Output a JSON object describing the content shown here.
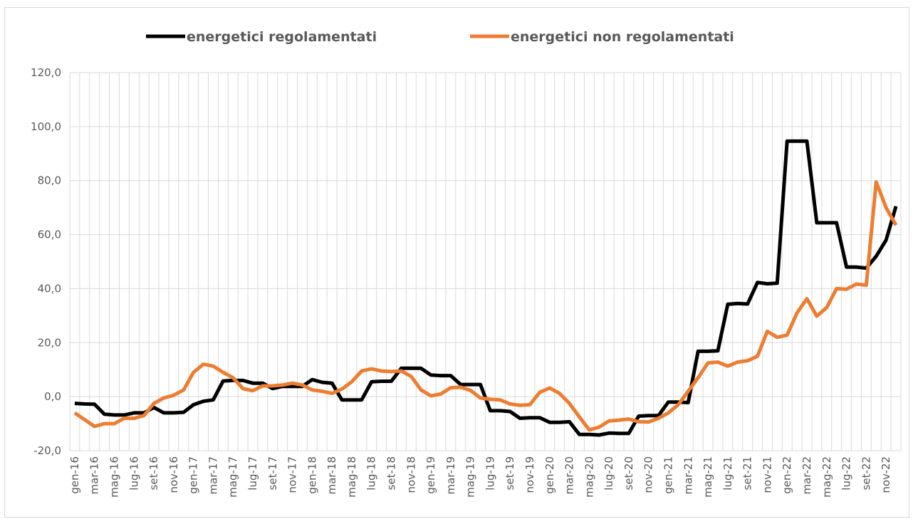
{
  "chart_data": {
    "type": "line",
    "categories": [
      "gen-16",
      null,
      "mar-16",
      null,
      "mag-16",
      null,
      "lug-16",
      null,
      "set-16",
      null,
      "nov-16",
      null,
      "gen-17",
      null,
      "mar-17",
      null,
      "mag-17",
      null,
      "lug-17",
      null,
      "set-17",
      null,
      "nov-17",
      null,
      "gen-18",
      null,
      "mar-18",
      null,
      "mag-18",
      null,
      "lug-18",
      null,
      "set-18",
      null,
      "nov-18",
      null,
      "gen-19",
      null,
      "mar-19",
      null,
      "mag-19",
      null,
      "lug-19",
      null,
      "set-19",
      null,
      "nov-19",
      null,
      "gen-20",
      null,
      "mar-20",
      null,
      "mag-20",
      null,
      "lug-20",
      null,
      "set-20",
      null,
      "nov-20",
      null,
      "gen-21",
      null,
      "mar-21",
      null,
      "mag-21",
      null,
      "lug-21",
      null,
      "set-21",
      null,
      "nov-21",
      null,
      "gen-22",
      null,
      "mar-22",
      null,
      "mag-22",
      null,
      "lug-22",
      null,
      "set-22",
      null,
      "nov-22",
      null
    ],
    "series": [
      {
        "name": "energetici regolamentati",
        "color": "#000000",
        "values": [
          -2.5,
          -2.7,
          -2.8,
          -6.5,
          -6.8,
          -6.8,
          -6,
          -6,
          -4,
          -6,
          -6,
          -5.8,
          -3,
          -1.7,
          -1.2,
          5.8,
          6,
          6,
          5,
          5,
          3,
          3.8,
          3.8,
          3.8,
          6.3,
          5.3,
          5,
          -1.2,
          -1.2,
          -1.2,
          5.5,
          5.7,
          5.7,
          10.5,
          10.5,
          10.5,
          8,
          7.8,
          7.8,
          4.5,
          4.5,
          4.5,
          -5.2,
          -5.2,
          -5.5,
          -8,
          -7.8,
          -7.8,
          -9.5,
          -9.5,
          -9.3,
          -14,
          -14,
          -14.2,
          -13.5,
          -13.6,
          -13.6,
          -7.2,
          -7,
          -7,
          -2,
          -2,
          -2.2,
          16.8,
          16.8,
          17,
          34.2,
          34.5,
          34.3,
          42.3,
          41.8,
          42,
          94.6,
          94.6,
          94.6,
          64.4,
          64.4,
          64.4,
          48,
          48,
          47.6,
          52,
          58,
          70.5
        ]
      },
      {
        "name": "energetici non regolamentati",
        "color": "#ed7d31",
        "values": [
          -6,
          -8.5,
          -11,
          -10,
          -10,
          -8,
          -8,
          -7,
          -2.5,
          -0.5,
          0.5,
          2.5,
          9,
          12,
          11.3,
          9,
          7,
          3,
          2.2,
          4,
          4,
          4.3,
          5,
          4.3,
          2.5,
          2,
          1.2,
          2.8,
          5.5,
          9.5,
          10.3,
          9.5,
          9.3,
          9.5,
          7.5,
          2.5,
          0.3,
          1,
          3.3,
          3.5,
          2.3,
          -0.5,
          -1,
          -1.2,
          -2.7,
          -3.2,
          -3,
          1.6,
          3.2,
          1.2,
          -2.5,
          -7.5,
          -12.3,
          -11.3,
          -9,
          -8.7,
          -8.3,
          -9.3,
          -9.4,
          -8,
          -6,
          -3,
          2,
          7,
          12.5,
          12.8,
          11.3,
          12.8,
          13.3,
          15,
          24.2,
          22,
          22.8,
          31,
          36.3,
          29.8,
          33,
          40,
          39.8,
          41.7,
          41.3,
          79.5,
          70,
          63.5
        ]
      }
    ],
    "ylim": [
      -20,
      120
    ],
    "yticks": [
      {
        "value": -20,
        "label": "-20,0"
      },
      {
        "value": 0,
        "label": "0,0"
      },
      {
        "value": 20,
        "label": "20,0"
      },
      {
        "value": 40,
        "label": "40,0"
      },
      {
        "value": 60,
        "label": "60,0"
      },
      {
        "value": 80,
        "label": "80,0"
      },
      {
        "value": 100,
        "label": "100,0"
      },
      {
        "value": 120,
        "label": "120,0"
      }
    ],
    "grid": true,
    "legend": "top"
  }
}
